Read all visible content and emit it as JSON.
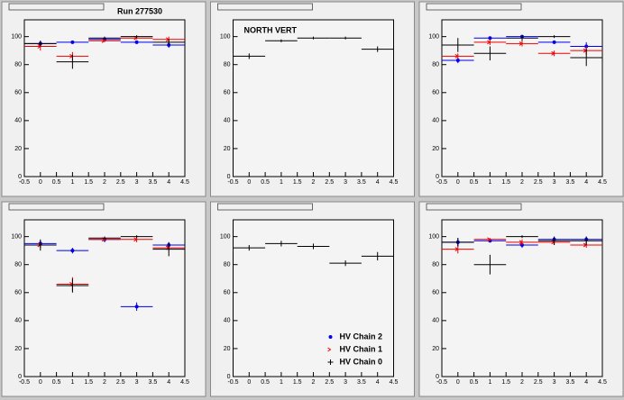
{
  "chart_data": [
    {
      "type": "scatter",
      "title": "Run 277530",
      "x": [
        0,
        1,
        2,
        3,
        4
      ],
      "xerr": 0.5,
      "xlim": [
        -0.5,
        4.5
      ],
      "ylim": [
        0,
        112
      ],
      "xticks": [
        -0.5,
        0,
        0.5,
        1,
        1.5,
        2,
        2.5,
        3,
        3.5,
        4,
        4.5
      ],
      "yticks": [
        0,
        20,
        40,
        60,
        80,
        100
      ],
      "series": [
        {
          "color": "#0000ee",
          "marker": "diamond",
          "values": [
            95,
            96,
            98,
            96,
            94
          ],
          "yerr": [
            2,
            1,
            1,
            1,
            2
          ]
        },
        {
          "color": "#ee0000",
          "marker": "arrow",
          "values": [
            93,
            86,
            97,
            99,
            98
          ],
          "yerr": [
            3,
            3,
            1,
            1,
            2
          ]
        },
        {
          "color": "#000000",
          "marker": "none",
          "values": [
            95,
            82,
            99,
            100,
            96
          ],
          "yerr": [
            2,
            5,
            1,
            1,
            2
          ]
        }
      ]
    },
    {
      "type": "scatter",
      "annotation": "NORTH VERT",
      "x": [
        0,
        1,
        2,
        3,
        4
      ],
      "xerr": 0.5,
      "xlim": [
        -0.5,
        4.5
      ],
      "ylim": [
        0,
        112
      ],
      "xticks": [
        -0.5,
        0,
        0.5,
        1,
        1.5,
        2,
        2.5,
        3,
        3.5,
        4,
        4.5
      ],
      "yticks": [
        0,
        20,
        40,
        60,
        80,
        100
      ],
      "series": [
        {
          "color": "#000000",
          "marker": "none",
          "values": [
            86,
            97,
            99,
            99,
            91
          ],
          "yerr": [
            2,
            1,
            1,
            1,
            2
          ]
        }
      ]
    },
    {
      "type": "scatter",
      "x": [
        0,
        1,
        2,
        3,
        4
      ],
      "xerr": 0.5,
      "xlim": [
        -0.5,
        4.5
      ],
      "ylim": [
        0,
        112
      ],
      "xticks": [
        -0.5,
        0,
        0.5,
        1,
        1.5,
        2,
        2.5,
        3,
        3.5,
        4,
        4.5
      ],
      "yticks": [
        0,
        20,
        40,
        60,
        80,
        100
      ],
      "series": [
        {
          "color": "#0000ee",
          "marker": "diamond",
          "values": [
            83,
            99,
            100,
            96,
            93
          ],
          "yerr": [
            2,
            1,
            1,
            1,
            3
          ]
        },
        {
          "color": "#ee0000",
          "marker": "arrow",
          "values": [
            86,
            96,
            95,
            88,
            90
          ],
          "yerr": [
            2,
            2,
            2,
            2,
            3
          ]
        },
        {
          "color": "#000000",
          "marker": "none",
          "values": [
            94,
            88,
            99,
            100,
            85
          ],
          "yerr": [
            5,
            5,
            2,
            1,
            6
          ]
        }
      ]
    },
    {
      "type": "scatter",
      "x": [
        0,
        1,
        2,
        3,
        4
      ],
      "xerr": 0.5,
      "xlim": [
        -0.5,
        4.5
      ],
      "ylim": [
        0,
        112
      ],
      "xticks": [
        -0.5,
        0,
        0.5,
        1,
        1.5,
        2,
        2.5,
        3,
        3.5,
        4,
        4.5
      ],
      "yticks": [
        0,
        20,
        40,
        60,
        80,
        100
      ],
      "series": [
        {
          "color": "#0000ee",
          "marker": "diamond",
          "values": [
            95,
            90,
            98,
            50,
            94
          ],
          "yerr": [
            2,
            2,
            2,
            3,
            2
          ]
        },
        {
          "color": "#ee0000",
          "marker": "arrow",
          "values": [
            94,
            66,
            98,
            98,
            92
          ],
          "yerr": [
            2,
            5,
            1,
            2,
            2
          ]
        },
        {
          "color": "#000000",
          "marker": "none",
          "values": [
            94,
            65,
            99,
            100,
            91
          ],
          "yerr": [
            4,
            5,
            1,
            1,
            5
          ]
        }
      ]
    },
    {
      "type": "scatter",
      "x": [
        0,
        1,
        2,
        3,
        4
      ],
      "xerr": 0.5,
      "xlim": [
        -0.5,
        4.5
      ],
      "ylim": [
        0,
        112
      ],
      "xticks": [
        -0.5,
        0,
        0.5,
        1,
        1.5,
        2,
        2.5,
        3,
        3.5,
        4,
        4.5
      ],
      "yticks": [
        0,
        20,
        40,
        60,
        80,
        100
      ],
      "series": [
        {
          "color": "#000000",
          "marker": "none",
          "values": [
            92,
            95,
            93,
            81,
            86
          ],
          "yerr": [
            2,
            2,
            2,
            2,
            3
          ]
        }
      ],
      "legend": {
        "position": "lower right",
        "entries": [
          {
            "name": "HV Chain 2",
            "color": "#0000ee",
            "marker": "diamond"
          },
          {
            "name": "HV Chain 1",
            "color": "#ee0000",
            "marker": "arrow"
          },
          {
            "name": "HV Chain 0",
            "color": "#000000",
            "marker": "none"
          }
        ]
      }
    },
    {
      "type": "scatter",
      "x": [
        0,
        1,
        2,
        3,
        4
      ],
      "xerr": 0.5,
      "xlim": [
        -0.5,
        4.5
      ],
      "ylim": [
        0,
        112
      ],
      "xticks": [
        -0.5,
        0,
        0.5,
        1,
        1.5,
        2,
        2.5,
        3,
        3.5,
        4,
        4.5
      ],
      "yticks": [
        0,
        20,
        40,
        60,
        80,
        100
      ],
      "series": [
        {
          "color": "#0000ee",
          "marker": "diamond",
          "values": [
            96,
            97,
            94,
            98,
            98
          ],
          "yerr": [
            3,
            1,
            2,
            2,
            2
          ]
        },
        {
          "color": "#ee0000",
          "marker": "arrow",
          "values": [
            91,
            98,
            96,
            96,
            94
          ],
          "yerr": [
            3,
            1,
            2,
            2,
            2
          ]
        },
        {
          "color": "#000000",
          "marker": "none",
          "values": [
            96,
            80,
            100,
            97,
            97
          ],
          "yerr": [
            3,
            7,
            1,
            3,
            3
          ]
        }
      ]
    }
  ]
}
